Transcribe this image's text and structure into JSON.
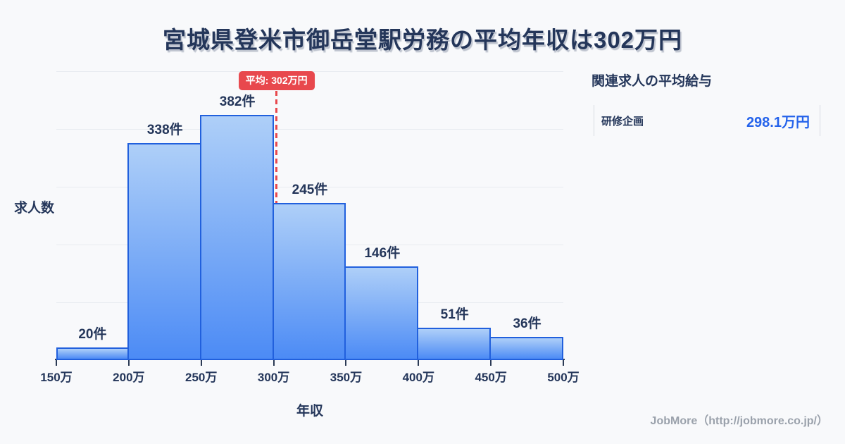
{
  "title": "宮城県登米市御岳堂駅労務の平均年収は302万円",
  "chart_data": {
    "type": "bar",
    "title": "宮城県登米市御岳堂駅労務の平均年収は302万円",
    "categories": [
      "150万-200万",
      "200万-250万",
      "250万-300万",
      "300万-350万",
      "350万-400万",
      "400万-450万",
      "450万-500万"
    ],
    "values": [
      20,
      338,
      382,
      245,
      146,
      51,
      36
    ],
    "value_labels": [
      "20件",
      "338件",
      "382件",
      "245件",
      "146件",
      "51件",
      "36件"
    ],
    "x_tick_labels": [
      "150万",
      "200万",
      "250万",
      "300万",
      "350万",
      "400万",
      "450万",
      "500万"
    ],
    "x_range_man": [
      150,
      500
    ],
    "ylim": [
      0,
      450
    ],
    "grid_steps": 5,
    "grid": true,
    "legend": "none",
    "xlabel": "年収",
    "ylabel": "求人数",
    "average_line": {
      "x_man": 302,
      "label": "平均: 302万円"
    }
  },
  "side_panel": {
    "heading": "関連求人の平均給与",
    "rows": [
      {
        "name": "研修企画",
        "value": "298.1万円"
      }
    ]
  },
  "footer": {
    "credit": "JobMore（http://jobmore.co.jp/）"
  },
  "colors": {
    "background": "#f8f9fb",
    "title_text": "#24365a",
    "bar_border": "#2160dd",
    "bar_fill_top": "#aecff8",
    "bar_fill_bottom": "#4c8bf5",
    "grid_line": "#e8ebf0",
    "axis_line": "#2b3a55",
    "average_red": "#e8484d",
    "salary_blue": "#2563eb",
    "footer_gray": "#9aa1ab"
  }
}
